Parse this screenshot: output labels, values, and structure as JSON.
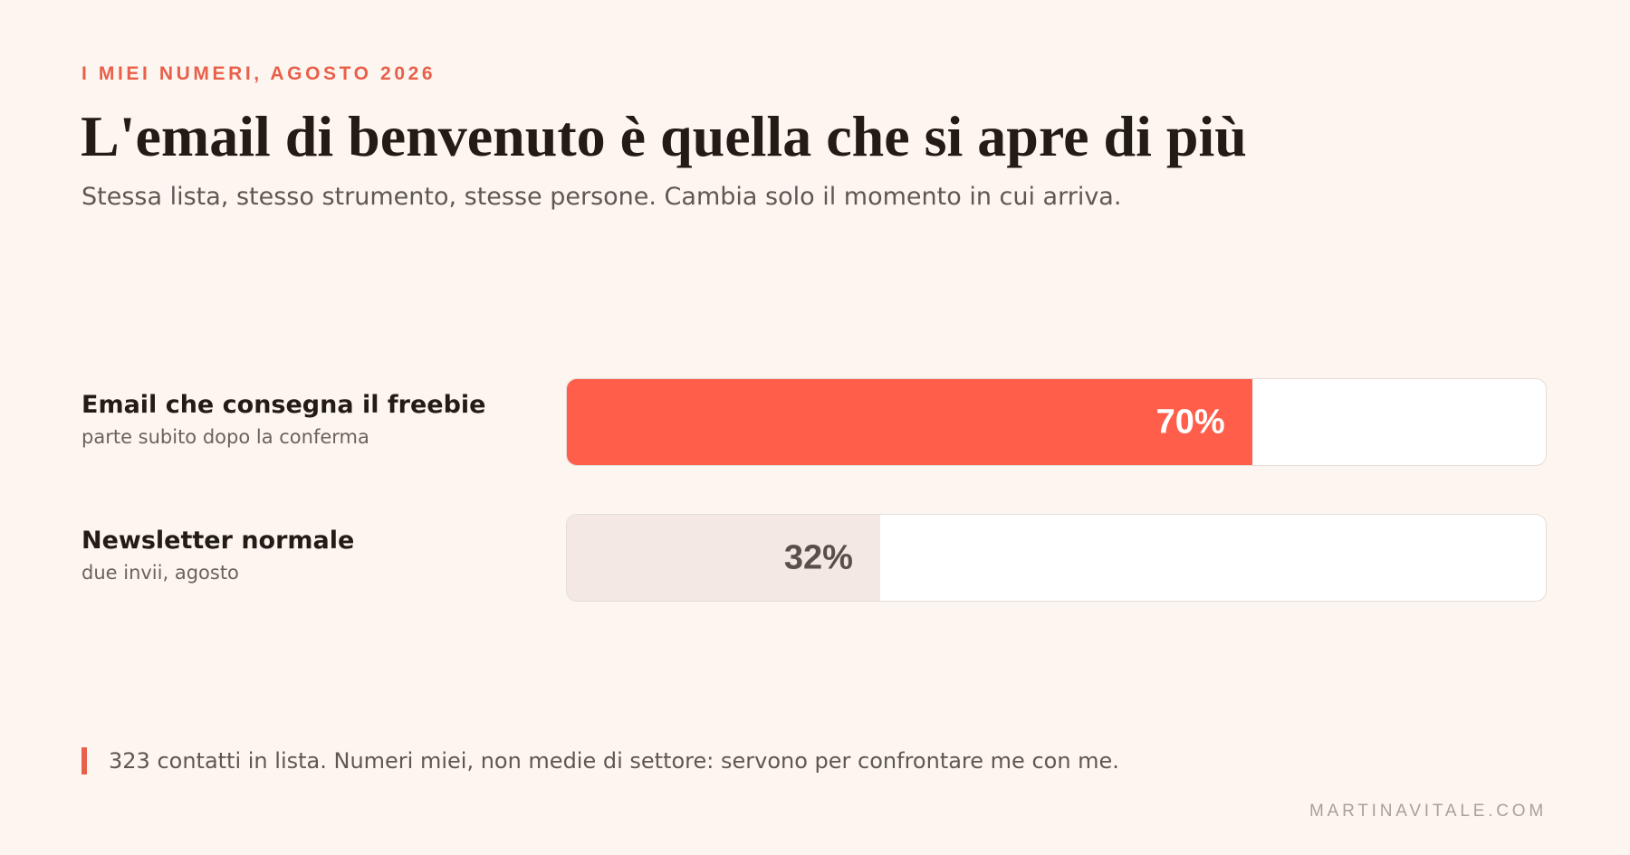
{
  "header": {
    "eyebrow": "I MIEI NUMERI, AGOSTO 2026",
    "title": "L'email di benvenuto è quella che si apre di più",
    "subtitle": "Stessa lista, stesso strumento, stesse persone. Cambia solo il momento in cui arriva."
  },
  "chart_data": {
    "type": "bar",
    "orientation": "horizontal",
    "title": "L'email di benvenuto è quella che si apre di più",
    "categories": [
      "Email che consegna il freebie",
      "Newsletter normale"
    ],
    "category_notes": [
      "parte subito dopo la conferma",
      "due invii, agosto"
    ],
    "values": [
      70,
      32
    ],
    "value_labels": [
      "70%",
      "32%"
    ],
    "unit": "%",
    "xlim": [
      0,
      100
    ],
    "grid": false,
    "bar_colors": [
      "#ff5e4b",
      "#f3e8e2"
    ]
  },
  "footer": {
    "note": "323 contatti in lista. Numeri miei, non medie di settore: servono per confrontare me con me.",
    "site": "MARTINAVITALE.COM"
  },
  "colors": {
    "background": "#fdf6f0",
    "accent": "#e8604a",
    "text": "#231b16"
  }
}
